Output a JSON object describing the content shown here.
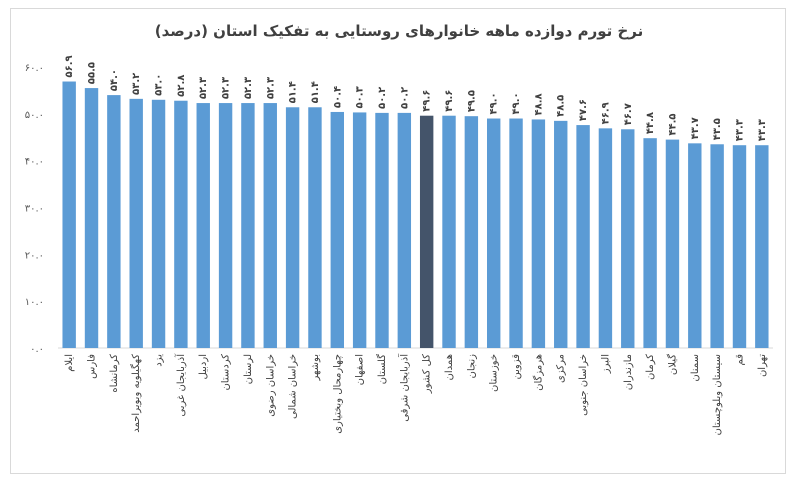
{
  "chart_data": {
    "type": "bar",
    "title": "نرخ تورم دوازده ماهه خانوارهای روستایی به تفکیک استان (درصد)",
    "xlabel": "",
    "ylabel": "",
    "ylim": [
      0,
      60
    ],
    "yticks": [
      0,
      10,
      20,
      30,
      40,
      50,
      60
    ],
    "ytick_labels": [
      "۰.۰",
      "۱۰.۰",
      "۲۰.۰",
      "۳۰.۰",
      "۴۰.۰",
      "۵۰.۰",
      "۶۰.۰"
    ],
    "grid": false,
    "legend": "none",
    "bar_color": "#5b9bd5",
    "highlight_color": "#44546a",
    "highlight_category": "کل کشور",
    "categories": [
      "ایلام",
      "فارس",
      "کرمانشاه",
      "کهگیلویه وبویراحمد",
      "یزد",
      "آذربایجان غربی",
      "اردبیل",
      "کردستان",
      "لرستان",
      "خراسان رضوی",
      "خراسان شمالی",
      "بوشهر",
      "چهارمحال وبختیاری",
      "اصفهان",
      "گلستان",
      "آذربایجان شرقی",
      "کل کشور",
      "همدان",
      "زنجان",
      "خوزستان",
      "قزوین",
      "هرمزگان",
      "مرکزی",
      "خراسان جنوبی",
      "البرز",
      "مازندران",
      "کرمان",
      "گیلان",
      "سمنان",
      "سیستان وبلوچستان",
      "قم",
      "تهران"
    ],
    "values": [
      56.9,
      55.5,
      54.0,
      53.2,
      53.0,
      52.8,
      52.3,
      52.3,
      52.3,
      52.3,
      51.4,
      51.4,
      50.4,
      50.3,
      50.2,
      50.2,
      49.6,
      49.6,
      49.5,
      49.0,
      49.0,
      48.8,
      48.5,
      47.6,
      46.9,
      46.7,
      44.8,
      44.5,
      43.7,
      43.5,
      43.3,
      43.3
    ],
    "value_labels": [
      "۵۶.۹",
      "۵۵.۵",
      "۵۴.۰",
      "۵۳.۲",
      "۵۳.۰",
      "۵۲.۸",
      "۵۲.۳",
      "۵۲.۳",
      "۵۲.۳",
      "۵۲.۳",
      "۵۱.۴",
      "۵۱.۴",
      "۵۰.۴",
      "۵۰.۳",
      "۵۰.۲",
      "۵۰.۲",
      "۴۹.۶",
      "۴۹.۶",
      "۴۹.۵",
      "۴۹.۰",
      "۴۹.۰",
      "۴۸.۸",
      "۴۸.۵",
      "۴۷.۶",
      "۴۶.۹",
      "۴۶.۷",
      "۴۴.۸",
      "۴۴.۵",
      "۴۳.۷",
      "۴۳.۵",
      "۴۳.۳",
      "۴۳.۳"
    ]
  }
}
